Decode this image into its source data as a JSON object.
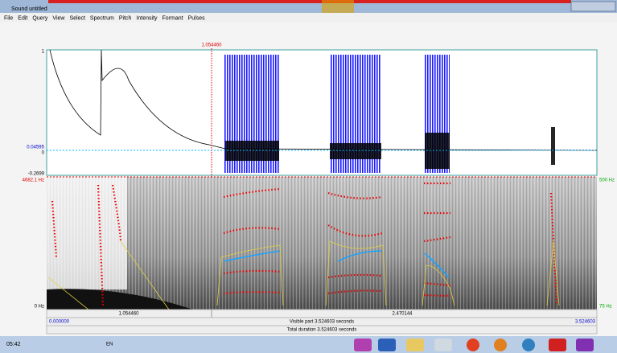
{
  "window": {
    "title": "Sound untitled"
  },
  "menu": [
    "File",
    "Edit",
    "Query",
    "View",
    "Select",
    "Spectrum",
    "Pitch",
    "Intensity",
    "Formant",
    "Pulses"
  ],
  "cursor": "1.054460",
  "waveform": {
    "max": "1",
    "cursor_value": "0.04595",
    "zero": "0",
    "min": "-0.2699"
  },
  "spectrogram": {
    "top": "4682.1 Hz",
    "bottom": "0 Hz",
    "pitch_top": "500 Hz",
    "pitch_bottom": "75 Hz"
  },
  "time_axis": {
    "cursor": "1.054460",
    "mark": "2.470144"
  },
  "bottom_bar": {
    "start": "0.000000",
    "visible": "Visible part 3.524603 seconds",
    "end": "3.524603",
    "total": "Total duration 3.524603 seconds"
  },
  "taskbar": {
    "language": "EN",
    "clock": "05:42"
  }
}
